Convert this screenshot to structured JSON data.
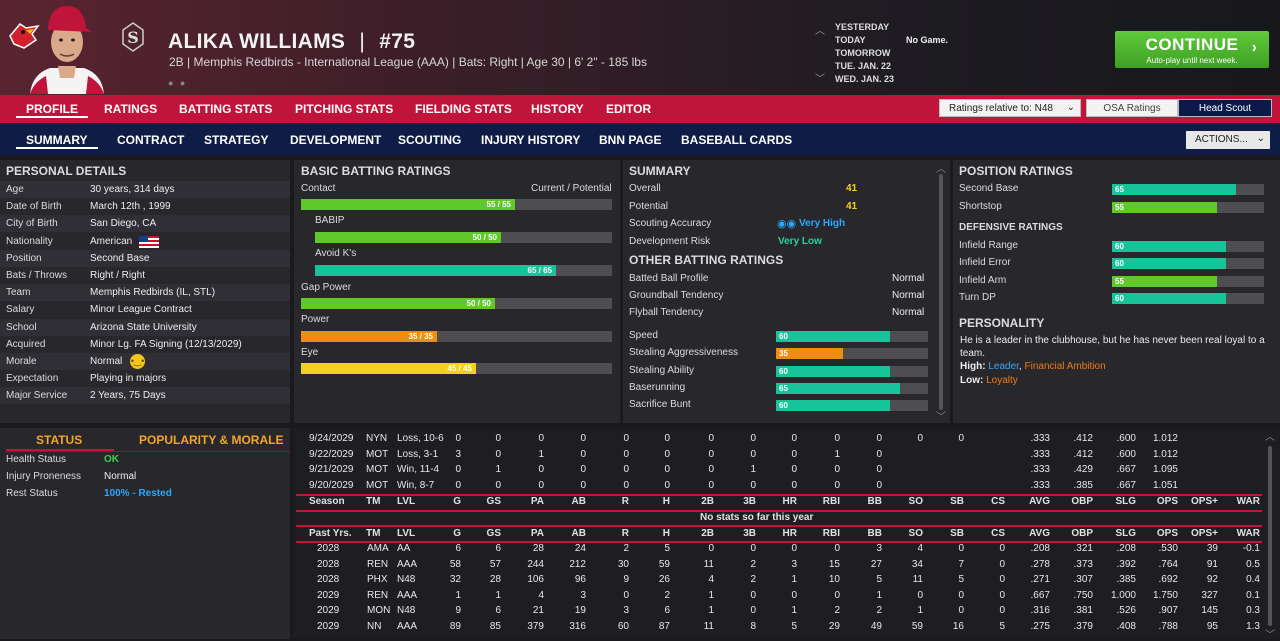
{
  "header": {
    "player_name": "ALIKA WILLIAMS",
    "sep": "|",
    "number": "#75",
    "subtitle": "2B | Memphis Redbirds - International League (AAA) | Bats: Right | Age 30 | 6' 2\" - 185 lbs",
    "schedule": [
      "YESTERDAY",
      "TODAY",
      "TOMORROW",
      "TUE. JAN. 22",
      "WED. JAN. 23"
    ],
    "no_game": "No Game.",
    "continue_label": "CONTINUE",
    "continue_sub": "Auto-play until next week."
  },
  "nav1": {
    "tabs": [
      "PROFILE",
      "RATINGS",
      "BATTING STATS",
      "PITCHING STATS",
      "FIELDING STATS",
      "HISTORY",
      "EDITOR"
    ],
    "ratings_relative": "Ratings relative to: N48",
    "osa": "OSA Ratings",
    "head_scout": "Head Scout"
  },
  "nav2": {
    "tabs": [
      "SUMMARY",
      "CONTRACT",
      "STRATEGY",
      "DEVELOPMENT",
      "SCOUTING",
      "INJURY HISTORY",
      "BNN PAGE",
      "BASEBALL CARDS"
    ],
    "actions": "ACTIONS..."
  },
  "personal": {
    "title": "PERSONAL DETAILS",
    "rows": [
      {
        "label": "Age",
        "value": "30 years, 314 days"
      },
      {
        "label": "Date of Birth",
        "value": "March 12th , 1999"
      },
      {
        "label": "City of Birth",
        "value": "San Diego, CA"
      },
      {
        "label": "Nationality",
        "value": "American"
      },
      {
        "label": "Position",
        "value": "Second Base"
      },
      {
        "label": "Bats / Throws",
        "value": "Right / Right"
      },
      {
        "label": "Team",
        "value": "Memphis Redbirds (IL, STL)"
      },
      {
        "label": "Salary",
        "value": "Minor League Contract"
      },
      {
        "label": "School",
        "value": "Arizona State University"
      },
      {
        "label": "Acquired",
        "value": "Minor Lg. FA Signing (12/13/2029)"
      },
      {
        "label": "Morale",
        "value": "Normal"
      },
      {
        "label": "Expectation",
        "value": "Playing in majors"
      },
      {
        "label": "Major Service",
        "value": "2 Years, 75 Days"
      }
    ]
  },
  "batting": {
    "title": "BASIC BATTING RATINGS",
    "cp_header": "Current / Potential",
    "rows": [
      {
        "label": "Contact",
        "text": "55 / 55",
        "value": 55,
        "color": "green",
        "indent": false
      },
      {
        "label": "BABIP",
        "text": "50 / 50",
        "value": 50,
        "color": "green",
        "indent": true
      },
      {
        "label": "Avoid K's",
        "text": "65 / 65",
        "value": 65,
        "color": "teal",
        "indent": true
      },
      {
        "label": "Gap Power",
        "text": "50 / 50",
        "value": 50,
        "color": "green",
        "indent": false
      },
      {
        "label": "Power",
        "text": "35 / 35",
        "value": 35,
        "color": "orange",
        "indent": false
      },
      {
        "label": "Eye",
        "text": "45 / 45",
        "value": 45,
        "color": "yellow",
        "indent": false
      }
    ]
  },
  "summary": {
    "title": "SUMMARY",
    "rows": [
      {
        "label": "Overall",
        "value": "41"
      },
      {
        "label": "Potential",
        "value": "41"
      },
      {
        "label": "Scouting Accuracy",
        "value": "Very High"
      },
      {
        "label": "Development Risk",
        "value": "Very Low"
      }
    ],
    "other_title": "OTHER BATTING RATINGS",
    "other": [
      {
        "label": "Batted Ball Profile",
        "value": "Normal"
      },
      {
        "label": "Groundball Tendency",
        "value": "Normal"
      },
      {
        "label": "Flyball Tendency",
        "value": "Normal"
      }
    ],
    "bars": [
      {
        "label": "Speed",
        "value": 60,
        "color": "teal"
      },
      {
        "label": "Stealing Aggressiveness",
        "value": 35,
        "color": "orange"
      },
      {
        "label": "Stealing Ability",
        "value": 60,
        "color": "teal"
      },
      {
        "label": "Baserunning",
        "value": 65,
        "color": "teal"
      },
      {
        "label": "Sacrifice Bunt",
        "value": 60,
        "color": "teal"
      }
    ]
  },
  "position": {
    "title": "POSITION RATINGS",
    "rows": [
      {
        "label": "Second Base",
        "value": 65,
        "color": "teal"
      },
      {
        "label": "Shortstop",
        "value": 55,
        "color": "green"
      }
    ],
    "def_title": "DEFENSIVE RATINGS",
    "def": [
      {
        "label": "Infield Range",
        "value": 60,
        "color": "teal"
      },
      {
        "label": "Infield Error",
        "value": 60,
        "color": "teal"
      },
      {
        "label": "Infield Arm",
        "value": 55,
        "color": "green"
      },
      {
        "label": "Turn DP",
        "value": 60,
        "color": "teal"
      }
    ],
    "personality_title": "PERSONALITY",
    "personality_text": "He is a leader in the clubhouse, but he has never been real loyal to a team.",
    "high_label": "High:",
    "high_a": "Leader",
    "high_sep": ",",
    "high_b": "Financial Ambition",
    "low_label": "Low:",
    "low_a": "Loyalty"
  },
  "status": {
    "tab_status": "STATUS",
    "tab_pop": "POPULARITY & MORALE",
    "rows": [
      {
        "label": "Health Status",
        "value": "OK"
      },
      {
        "label": "Injury Proneness",
        "value": "Normal"
      },
      {
        "label": "Rest Status",
        "value": "100% - Rested"
      }
    ]
  },
  "stats": {
    "columns": [
      "Season",
      "TM",
      "LVL",
      "G",
      "GS",
      "PA",
      "AB",
      "R",
      "H",
      "2B",
      "3B",
      "HR",
      "RBI",
      "BB",
      "SO",
      "SB",
      "CS",
      "AVG",
      "OBP",
      "SLG",
      "OPS",
      "OPS+",
      "WAR"
    ],
    "past_columns": [
      "Past Yrs.",
      "TM",
      "LVL",
      "G",
      "GS",
      "PA",
      "AB",
      "R",
      "H",
      "2B",
      "3B",
      "HR",
      "RBI",
      "BB",
      "SO",
      "SB",
      "CS",
      "AVG",
      "OBP",
      "SLG",
      "OPS",
      "OPS+",
      "WAR"
    ],
    "game_log": [
      [
        "9/24/2029",
        "NYN",
        "Loss, 10-6",
        "0",
        "0",
        "0",
        "0",
        "0",
        "0",
        "0",
        "0",
        "0",
        "0",
        "0",
        "0",
        "0",
        ".333",
        ".412",
        ".600",
        "1.012"
      ],
      [
        "9/22/2029",
        "MOT",
        "Loss, 3-1",
        "3",
        "0",
        "1",
        "0",
        "0",
        "0",
        "0",
        "0",
        "0",
        "1",
        "0",
        ".333",
        ".412",
        ".600",
        "1.012"
      ],
      [
        "9/21/2029",
        "MOT",
        "Win, 11-4",
        "0",
        "1",
        "0",
        "0",
        "0",
        "0",
        "0",
        "1",
        "0",
        "0",
        "0",
        ".333",
        ".429",
        ".667",
        "1.095"
      ],
      [
        "9/20/2029",
        "MOT",
        "Win, 8-7",
        "0",
        "0",
        "0",
        "0",
        "0",
        "0",
        "0",
        "0",
        "0",
        "0",
        "0",
        ".333",
        ".385",
        ".667",
        "1.051"
      ]
    ],
    "no_stats": "No stats so far this year",
    "past": [
      [
        "2028",
        "AMA",
        "AA",
        "6",
        "6",
        "28",
        "24",
        "2",
        "5",
        "0",
        "0",
        "0",
        "0",
        "3",
        "4",
        "0",
        "0",
        ".208",
        ".321",
        ".208",
        ".530",
        "39",
        "-0.1"
      ],
      [
        "2028",
        "REN",
        "AAA",
        "58",
        "57",
        "244",
        "212",
        "30",
        "59",
        "11",
        "2",
        "3",
        "15",
        "27",
        "34",
        "7",
        "0",
        ".278",
        ".373",
        ".392",
        ".764",
        "91",
        "0.5"
      ],
      [
        "2028",
        "PHX",
        "N48",
        "32",
        "28",
        "106",
        "96",
        "9",
        "26",
        "4",
        "2",
        "1",
        "10",
        "5",
        "11",
        "5",
        "0",
        ".271",
        ".307",
        ".385",
        ".692",
        "92",
        "0.4"
      ],
      [
        "2029",
        "REN",
        "AAA",
        "1",
        "1",
        "4",
        "3",
        "0",
        "2",
        "1",
        "0",
        "0",
        "0",
        "1",
        "0",
        "0",
        "0",
        ".667",
        ".750",
        "1.000",
        "1.750",
        "327",
        "0.1"
      ],
      [
        "2029",
        "MON",
        "N48",
        "9",
        "6",
        "21",
        "19",
        "3",
        "6",
        "1",
        "0",
        "1",
        "2",
        "2",
        "1",
        "0",
        "0",
        ".316",
        ".381",
        ".526",
        ".907",
        "145",
        "0.3"
      ],
      [
        "2029",
        "NN",
        "AAA",
        "89",
        "85",
        "379",
        "316",
        "60",
        "87",
        "11",
        "8",
        "5",
        "29",
        "49",
        "59",
        "16",
        "5",
        ".275",
        ".379",
        ".408",
        ".788",
        "95",
        "1.3"
      ]
    ]
  }
}
